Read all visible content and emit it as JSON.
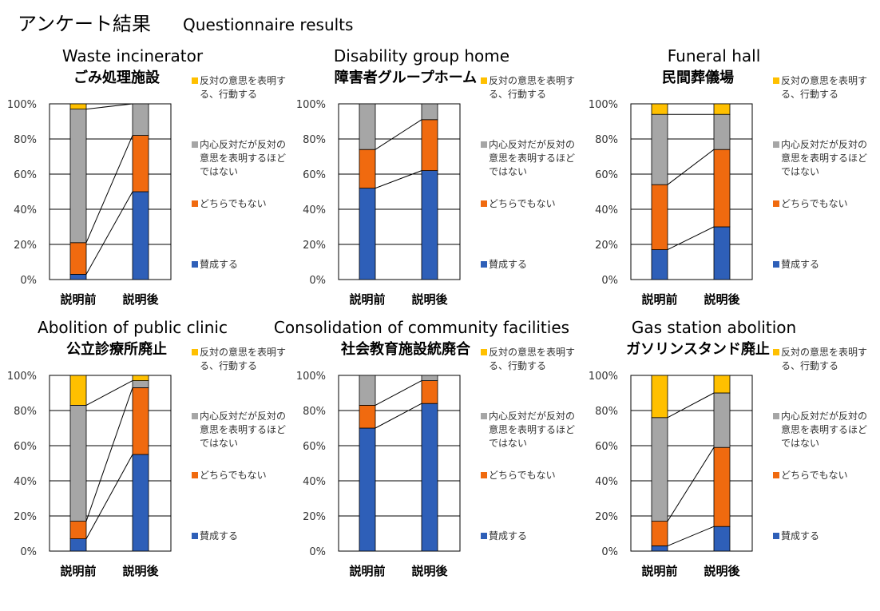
{
  "page": {
    "title_ja": "アンケート結果",
    "title_en": "Questionnaire results"
  },
  "colors": {
    "support": "#2E5FB8",
    "neutral": "#F06A0F",
    "inner": "#A6A6A6",
    "oppose": "#FFC000"
  },
  "x_labels": [
    "説明前",
    "説明後"
  ],
  "y_ticks": [
    "0%",
    "20%",
    "40%",
    "60%",
    "80%",
    "100%"
  ],
  "legend": {
    "oppose": "反対の意思を表明する、行動する",
    "inner": "内心反対だが反対の意思を表明するほどではない",
    "neutral": "どちらでもない",
    "support": "賛成する"
  },
  "chart_data": [
    {
      "type": "bar",
      "stacked": true,
      "title_en": "Waste incinerator",
      "title_ja": "ごみ処理施設",
      "categories": [
        "説明前",
        "説明後"
      ],
      "ylim": [
        0,
        100
      ],
      "grid": true,
      "legend_position": "right",
      "series": [
        {
          "name": "賛成する",
          "key": "support",
          "values": [
            3,
            50
          ]
        },
        {
          "name": "どちらでもない",
          "key": "neutral",
          "values": [
            18,
            32
          ]
        },
        {
          "name": "内心反対だが反対の意思を表明するほどではない",
          "key": "inner",
          "values": [
            76,
            18
          ]
        },
        {
          "name": "反対の意思を表明する、行動する",
          "key": "oppose",
          "values": [
            3,
            0
          ]
        }
      ]
    },
    {
      "type": "bar",
      "stacked": true,
      "title_en": "Disability group home",
      "title_ja": "障害者グループホーム",
      "categories": [
        "説明前",
        "説明後"
      ],
      "ylim": [
        0,
        100
      ],
      "grid": true,
      "legend_position": "right",
      "series": [
        {
          "name": "賛成する",
          "key": "support",
          "values": [
            52,
            62
          ]
        },
        {
          "name": "どちらでもない",
          "key": "neutral",
          "values": [
            22,
            29
          ]
        },
        {
          "name": "内心反対だが反対の意思を表明するほどではない",
          "key": "inner",
          "values": [
            26,
            9
          ]
        },
        {
          "name": "反対の意思を表明する、行動する",
          "key": "oppose",
          "values": [
            0,
            0
          ]
        }
      ]
    },
    {
      "type": "bar",
      "stacked": true,
      "title_en": "Funeral hall",
      "title_ja": "民間葬儀場",
      "categories": [
        "説明前",
        "説明後"
      ],
      "ylim": [
        0,
        100
      ],
      "grid": true,
      "legend_position": "right",
      "series": [
        {
          "name": "賛成する",
          "key": "support",
          "values": [
            17,
            30
          ]
        },
        {
          "name": "どちらでもない",
          "key": "neutral",
          "values": [
            37,
            44
          ]
        },
        {
          "name": "内心反対だが反対の意思を表明するほどではない",
          "key": "inner",
          "values": [
            40,
            20
          ]
        },
        {
          "name": "反対の意思を表明する、行動する",
          "key": "oppose",
          "values": [
            6,
            6
          ]
        }
      ]
    },
    {
      "type": "bar",
      "stacked": true,
      "title_en": "Abolition of public clinic",
      "title_ja": "公立診療所廃止",
      "categories": [
        "説明前",
        "説明後"
      ],
      "ylim": [
        0,
        100
      ],
      "grid": true,
      "legend_position": "right",
      "series": [
        {
          "name": "賛成する",
          "key": "support",
          "values": [
            7,
            55
          ]
        },
        {
          "name": "どちらでもない",
          "key": "neutral",
          "values": [
            10,
            38
          ]
        },
        {
          "name": "内心反対だが反対の意思を表明するほどではない",
          "key": "inner",
          "values": [
            66,
            4
          ]
        },
        {
          "name": "反対の意思を表明する、行動する",
          "key": "oppose",
          "values": [
            17,
            3
          ]
        }
      ]
    },
    {
      "type": "bar",
      "stacked": true,
      "title_en": "Consolidation of community facilities",
      "title_ja": "社会教育施設統廃合",
      "categories": [
        "説明前",
        "説明後"
      ],
      "ylim": [
        0,
        100
      ],
      "grid": true,
      "legend_position": "right",
      "series": [
        {
          "name": "賛成する",
          "key": "support",
          "values": [
            70,
            84
          ]
        },
        {
          "name": "どちらでもない",
          "key": "neutral",
          "values": [
            13,
            13
          ]
        },
        {
          "name": "内心反対だが反対の意思を表明するほどではない",
          "key": "inner",
          "values": [
            17,
            3
          ]
        },
        {
          "name": "反対の意思を表明する、行動する",
          "key": "oppose",
          "values": [
            0,
            0
          ]
        }
      ]
    },
    {
      "type": "bar",
      "stacked": true,
      "title_en": "Gas station abolition",
      "title_ja": "ガソリンスタンド廃止",
      "categories": [
        "説明前",
        "説明後"
      ],
      "ylim": [
        0,
        100
      ],
      "grid": true,
      "legend_position": "right",
      "series": [
        {
          "name": "賛成する",
          "key": "support",
          "values": [
            3,
            14
          ]
        },
        {
          "name": "どちらでもない",
          "key": "neutral",
          "values": [
            14,
            45
          ]
        },
        {
          "name": "内心反対だが反対の意思を表明するほどではない",
          "key": "inner",
          "values": [
            59,
            31
          ]
        },
        {
          "name": "反対の意思を表明する、行動する",
          "key": "oppose",
          "values": [
            24,
            10
          ]
        }
      ]
    }
  ]
}
